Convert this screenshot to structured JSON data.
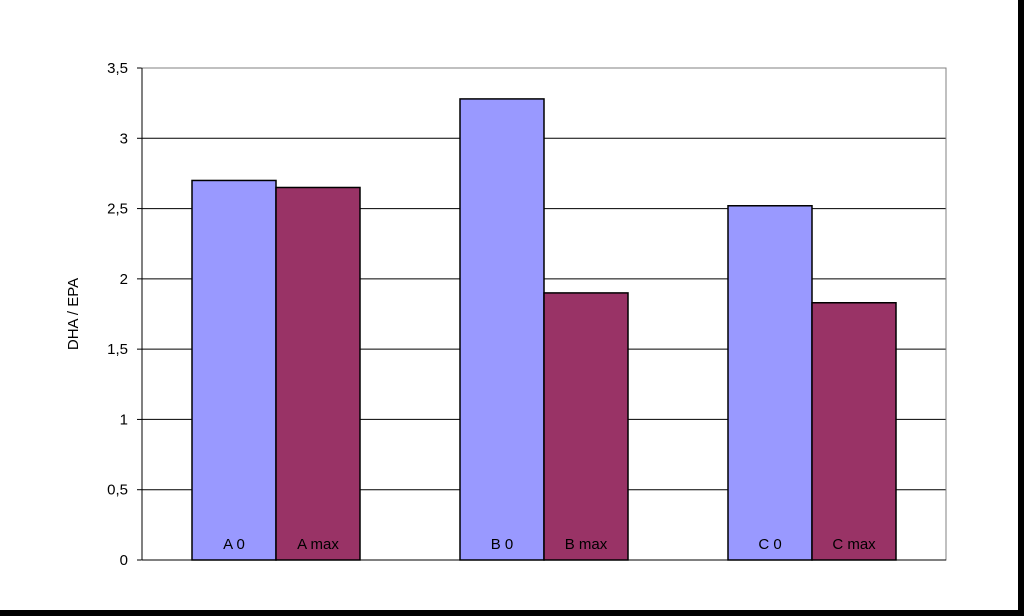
{
  "chart_data": {
    "type": "bar",
    "title": "",
    "xlabel": "",
    "ylabel": "DHA / EPA",
    "ylim": [
      0,
      3.5
    ],
    "yticks": [
      "0",
      "0,5",
      "1",
      "1,5",
      "2",
      "2,5",
      "3",
      "3,5"
    ],
    "grid": true,
    "legend": "none",
    "groups": [
      "A",
      "B",
      "C"
    ],
    "series": [
      {
        "color": "#9999ff",
        "labels": [
          "A 0",
          "B 0",
          "C 0"
        ],
        "values": [
          2.7,
          3.28,
          2.52
        ]
      },
      {
        "color": "#993366",
        "labels": [
          "A max",
          "B max",
          "C max"
        ],
        "values": [
          2.65,
          1.9,
          1.83
        ]
      }
    ]
  }
}
